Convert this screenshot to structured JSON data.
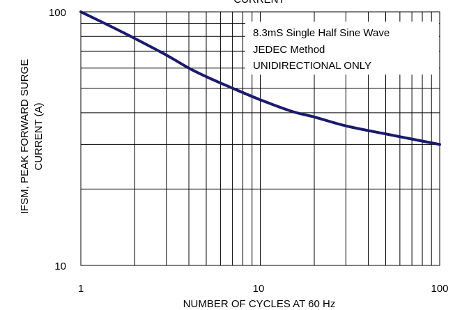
{
  "chart_data": {
    "type": "line",
    "title": "CURRENT",
    "xlabel": "NUMBER OF CYCLES AT 60 Hz",
    "ylabel_lines": [
      "IFSM, PEAK FORWARD SURGE",
      "CURRENT (A)"
    ],
    "x_scale": "log",
    "y_scale": "log",
    "xlim": [
      1,
      100
    ],
    "ylim": [
      10,
      100
    ],
    "x_ticks": [
      "1",
      "10",
      "100"
    ],
    "y_ticks": [
      "100",
      "10"
    ],
    "grid": true,
    "annotation_lines": [
      "8.3mS Single Half Sine Wave",
      "JEDEC Method",
      "UNIDIRECTIONAL ONLY"
    ],
    "series": [
      {
        "color": "#1a1a6e",
        "x": [
          1,
          1.5,
          2,
          3,
          4,
          5,
          7,
          10,
          15,
          20,
          30,
          50,
          70,
          100
        ],
        "y": [
          100,
          87,
          78.5,
          67.5,
          60,
          55.5,
          50,
          45,
          40.5,
          38.5,
          35.5,
          33,
          31.5,
          30
        ]
      }
    ]
  }
}
